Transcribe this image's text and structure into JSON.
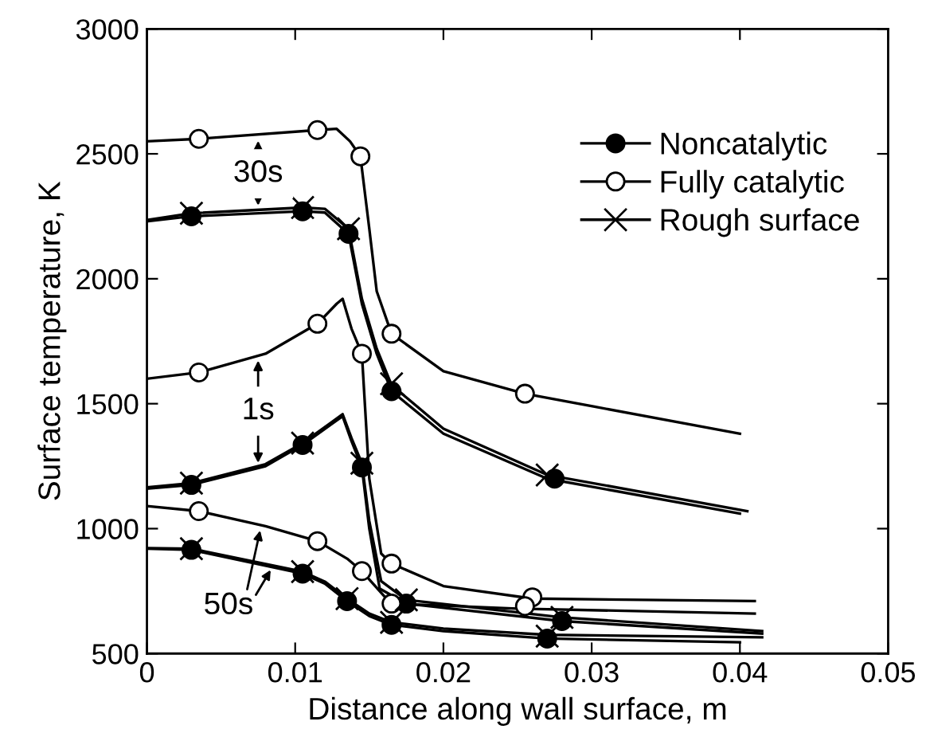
{
  "chart_data": {
    "type": "line",
    "xlabel": "Distance along wall surface, m",
    "ylabel": "Surface temperature, K",
    "xlim": [
      0,
      0.05
    ],
    "ylim": [
      500,
      3000
    ],
    "xticks": [
      0,
      0.01,
      0.02,
      0.03,
      0.04,
      0.05
    ],
    "yticks": [
      500,
      1000,
      1500,
      2000,
      2500,
      3000
    ],
    "grid": false,
    "legend": "top right",
    "line_style": "solid",
    "series": [
      {
        "marker": "none",
        "color": "#000000",
        "x": [
          0,
          0.0035,
          0.0115,
          0.0128,
          0.0137,
          0.0144,
          0.015,
          0.0155,
          0.0165,
          0.02,
          0.0255,
          0.04
        ],
        "values": [
          2550,
          2560,
          2595,
          2600,
          2550,
          2490,
          2200,
          1950,
          1780,
          1630,
          1540,
          1380
        ]
      },
      {
        "marker": "none",
        "color": "#000000",
        "x": [
          0,
          0.003,
          0.0105,
          0.012,
          0.0136,
          0.0145,
          0.0155,
          0.0165,
          0.02,
          0.027,
          0.04
        ],
        "values": [
          2230,
          2250,
          2270,
          2265,
          2180,
          1900,
          1700,
          1550,
          1380,
          1200,
          1060
        ]
      },
      {
        "marker": "none",
        "color": "#000000",
        "x": [
          0,
          0.003,
          0.0105,
          0.012,
          0.0136,
          0.0145,
          0.0155,
          0.0165,
          0.02,
          0.027,
          0.0405
        ],
        "values": [
          2235,
          2262,
          2285,
          2280,
          2200,
          1920,
          1720,
          1575,
          1400,
          1215,
          1070
        ]
      },
      {
        "marker": "none",
        "color": "#000000",
        "x": [
          0,
          0.0035,
          0.008,
          0.0115,
          0.0128,
          0.0132,
          0.0138,
          0.0145,
          0.015,
          0.0158,
          0.0165,
          0.02,
          0.026,
          0.041
        ],
        "values": [
          1600,
          1625,
          1700,
          1820,
          1900,
          1920,
          1800,
          1700,
          1200,
          900,
          860,
          770,
          720,
          710
        ]
      },
      {
        "marker": "none",
        "color": "#000000",
        "x": [
          0,
          0.003,
          0.008,
          0.0105,
          0.0125,
          0.0132,
          0.0138,
          0.0145,
          0.015,
          0.0157,
          0.0175,
          0.028,
          0.0415
        ],
        "values": [
          1160,
          1175,
          1250,
          1335,
          1420,
          1450,
          1350,
          1245,
          1000,
          760,
          700,
          630,
          580
        ]
      },
      {
        "marker": "none",
        "color": "#000000",
        "x": [
          0,
          0.003,
          0.008,
          0.0105,
          0.0125,
          0.0132,
          0.0138,
          0.0145,
          0.015,
          0.0158,
          0.0175,
          0.028,
          0.0415
        ],
        "values": [
          1165,
          1182,
          1258,
          1342,
          1428,
          1458,
          1362,
          1262,
          1030,
          790,
          715,
          645,
          590
        ]
      },
      {
        "marker": "none",
        "color": "#000000",
        "x": [
          0,
          0.0035,
          0.008,
          0.0115,
          0.0135,
          0.0145,
          0.016,
          0.0165,
          0.025,
          0.041
        ],
        "values": [
          1090,
          1070,
          1010,
          950,
          880,
          830,
          730,
          700,
          680,
          660
        ]
      },
      {
        "marker": "none",
        "color": "#000000",
        "x": [
          0,
          0.003,
          0.0105,
          0.012,
          0.0135,
          0.015,
          0.0165,
          0.02,
          0.027,
          0.04
        ],
        "values": [
          920,
          915,
          820,
          780,
          710,
          650,
          615,
          590,
          560,
          545
        ]
      },
      {
        "marker": "none",
        "color": "#000000",
        "x": [
          0,
          0.003,
          0.0105,
          0.012,
          0.0135,
          0.015,
          0.0165,
          0.02,
          0.027,
          0.0415
        ],
        "values": [
          922,
          920,
          828,
          788,
          720,
          660,
          625,
          600,
          575,
          565
        ]
      },
      {
        "type": "scatter",
        "name": "Noncatalytic",
        "marker": "circle",
        "color": "#000000",
        "x": [
          0.003,
          0.0105,
          0.0136,
          0.0165,
          0.0275,
          0.003,
          0.0105,
          0.0145,
          0.0175,
          0.028,
          0.003,
          0.0105,
          0.0135,
          0.0165,
          0.027
        ],
        "values": [
          2250,
          2270,
          2180,
          1550,
          1200,
          1175,
          1335,
          1245,
          700,
          630,
          915,
          820,
          710,
          615,
          560
        ]
      },
      {
        "type": "scatter",
        "name": "Fully catalytic",
        "marker": "circle",
        "color": "#ffffff",
        "x": [
          0.0035,
          0.0115,
          0.0144,
          0.0165,
          0.0255,
          0.0035,
          0.0115,
          0.0145,
          0.0165,
          0.026,
          0.0035,
          0.0115,
          0.0145,
          0.0165,
          0.0255
        ],
        "values": [
          2560,
          2595,
          2490,
          1780,
          1540,
          1625,
          1820,
          1700,
          860,
          725,
          1070,
          950,
          830,
          700,
          690
        ]
      },
      {
        "type": "scatter",
        "name": "Rough surface",
        "marker": "cross",
        "color": "#000000",
        "x": [
          0.003,
          0.0105,
          0.0136,
          0.0165,
          0.027,
          0.003,
          0.0105,
          0.0145,
          0.0175,
          0.028,
          0.003,
          0.0105,
          0.0135,
          0.0165,
          0.027
        ],
        "values": [
          2262,
          2285,
          2200,
          1580,
          1215,
          1182,
          1342,
          1262,
          715,
          645,
          920,
          828,
          720,
          625,
          570
        ]
      }
    ],
    "annotations": [
      "30s",
      "1s",
      "50s"
    ]
  }
}
